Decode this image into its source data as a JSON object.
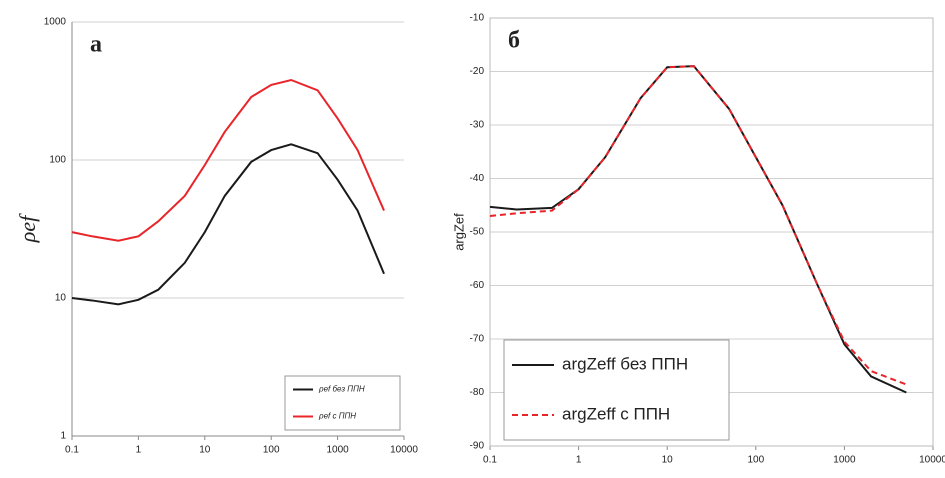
{
  "chart_data": [
    {
      "type": "line",
      "annotation": "а",
      "ylabel": "ρef",
      "xlog": true,
      "ylog": true,
      "grid": true,
      "legend": "lower right",
      "x": [
        0.1,
        0.2,
        0.5,
        1,
        2,
        5,
        10,
        20,
        50,
        100,
        200,
        500,
        1000,
        2000,
        5000
      ],
      "xlim": [
        0.1,
        10000
      ],
      "xticks": [
        0.1,
        1,
        10,
        100,
        1000,
        10000
      ],
      "ylim": [
        1,
        1000
      ],
      "yticks": [
        1,
        10,
        100,
        1000
      ],
      "series": [
        {
          "name": "ρef без ППН",
          "color": "#1a1a1a",
          "values": [
            10,
            9.6,
            9,
            9.7,
            11.5,
            18,
            30,
            55,
            97,
            118,
            130,
            112,
            72,
            43,
            15
          ]
        },
        {
          "name": "ρef с ППН",
          "color": "#e8252a",
          "values": [
            30,
            28,
            26,
            28,
            36,
            55,
            92,
            160,
            286,
            350,
            380,
            320,
            200,
            118,
            43
          ]
        }
      ]
    },
    {
      "type": "line",
      "annotation": "б",
      "ylabel": "argZef",
      "xlog": true,
      "ylog": false,
      "grid": true,
      "legend": "lower left",
      "x": [
        0.1,
        0.2,
        0.5,
        1,
        2,
        5,
        10,
        20,
        50,
        100,
        200,
        500,
        1000,
        2000,
        5000
      ],
      "xlim": [
        0.1,
        10000
      ],
      "xticks": [
        0.1,
        1,
        10,
        100,
        1000,
        10000
      ],
      "ylim": [
        -90,
        -10
      ],
      "yticks": [
        -90,
        -80,
        -70,
        -60,
        -50,
        -40,
        -30,
        -20,
        -10
      ],
      "series": [
        {
          "name": "argZeff без ППН",
          "color": "#1a1a1a",
          "dash": false,
          "values": [
            -45.3,
            -45.8,
            -45.5,
            -42,
            -36,
            -25,
            -19.2,
            -19,
            -27,
            -36,
            -45,
            -60,
            -71,
            -77,
            -80
          ]
        },
        {
          "name": "argZeff с ППН",
          "color": "#e8252a",
          "dash": true,
          "values": [
            -47,
            -46.5,
            -46,
            -42,
            -36,
            -25,
            -19.2,
            -19,
            -27,
            -36,
            -45,
            -60,
            -70.5,
            -76,
            -78.5
          ]
        }
      ]
    }
  ]
}
